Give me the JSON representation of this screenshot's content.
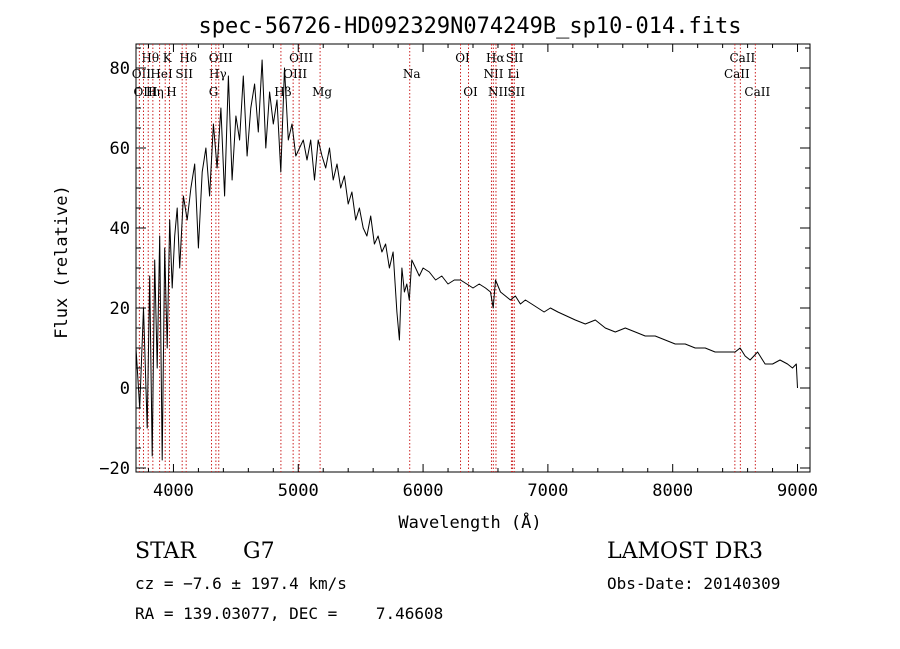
{
  "chart_data": {
    "type": "line",
    "title": "spec-56726-HD092329N074249B_sp10-014.fits",
    "xlabel": "Wavelength (Å)",
    "ylabel": "Flux (relative)",
    "xlim": [
      3700,
      9100
    ],
    "ylim": [
      -21,
      86
    ],
    "xticks": [
      4000,
      5000,
      6000,
      7000,
      8000,
      9000
    ],
    "xtick_labels": [
      "4000",
      "5000",
      "6000",
      "7000",
      "8000",
      "9000"
    ],
    "yticks": [
      -20,
      0,
      20,
      40,
      60,
      80
    ],
    "ytick_labels": [
      "−20",
      "0",
      "20",
      "40",
      "60",
      "80"
    ],
    "grid": false,
    "series": [
      {
        "name": "flux",
        "color": "#000000",
        "x": [
          3700,
          3730,
          3760,
          3790,
          3810,
          3830,
          3850,
          3870,
          3890,
          3910,
          3930,
          3950,
          3970,
          3990,
          4010,
          4030,
          4050,
          4080,
          4110,
          4140,
          4170,
          4200,
          4230,
          4260,
          4290,
          4320,
          4350,
          4380,
          4410,
          4440,
          4470,
          4500,
          4530,
          4560,
          4590,
          4620,
          4650,
          4680,
          4710,
          4740,
          4770,
          4800,
          4830,
          4860,
          4890,
          4920,
          4950,
          4980,
          5010,
          5040,
          5070,
          5100,
          5130,
          5160,
          5190,
          5220,
          5250,
          5280,
          5310,
          5340,
          5370,
          5400,
          5430,
          5460,
          5490,
          5520,
          5550,
          5580,
          5610,
          5640,
          5670,
          5700,
          5730,
          5760,
          5790,
          5810,
          5830,
          5850,
          5870,
          5890,
          5910,
          5940,
          5970,
          6000,
          6050,
          6100,
          6150,
          6200,
          6250,
          6300,
          6350,
          6400,
          6450,
          6500,
          6540,
          6562,
          6580,
          6620,
          6660,
          6700,
          6740,
          6780,
          6820,
          6870,
          6920,
          6970,
          7020,
          7080,
          7150,
          7220,
          7300,
          7380,
          7460,
          7540,
          7620,
          7700,
          7780,
          7860,
          7940,
          8020,
          8100,
          8180,
          8260,
          8340,
          8420,
          8500,
          8540,
          8580,
          8620,
          8680,
          8740,
          8800,
          8860,
          8920,
          8960,
          8990,
          9000
        ],
        "y": [
          10,
          -5,
          20,
          -10,
          28,
          -17,
          32,
          5,
          38,
          -18,
          35,
          10,
          42,
          25,
          38,
          45,
          30,
          48,
          42,
          50,
          56,
          35,
          54,
          60,
          48,
          66,
          55,
          70,
          48,
          78,
          52,
          68,
          62,
          78,
          58,
          70,
          76,
          64,
          82,
          60,
          74,
          66,
          72,
          54,
          80,
          62,
          66,
          58,
          60,
          62,
          57,
          62,
          52,
          62,
          58,
          55,
          60,
          52,
          56,
          50,
          53,
          46,
          49,
          42,
          45,
          40,
          38,
          43,
          36,
          38,
          34,
          36,
          30,
          34,
          19,
          12,
          30,
          24,
          26,
          22,
          32,
          30,
          28,
          30,
          29,
          27,
          28,
          26,
          27,
          27,
          26,
          25,
          26,
          25,
          24,
          20,
          27,
          24,
          23,
          22,
          23,
          21,
          22,
          21,
          20,
          19,
          20,
          19,
          18,
          17,
          16,
          17,
          15,
          14,
          15,
          14,
          13,
          13,
          12,
          11,
          11,
          10,
          10,
          9,
          9,
          9,
          10,
          8,
          7,
          9,
          6,
          6,
          7,
          6,
          5,
          6,
          0
        ]
      }
    ],
    "line_markers": [
      {
        "name": "Hθ",
        "wavelength": 3798,
        "row": 1
      },
      {
        "name": "OII",
        "wavelength": 3727,
        "row": 2
      },
      {
        "name": "OIII",
        "wavelength": 3760,
        "row": 3
      },
      {
        "name": "Hη",
        "wavelength": 3835,
        "row": 3
      },
      {
        "name": "K",
        "wavelength": 3934,
        "row": 1
      },
      {
        "name": "HeI",
        "wavelength": 3889,
        "row": 2
      },
      {
        "name": "H",
        "wavelength": 3968,
        "row": 3
      },
      {
        "name": "Hδ",
        "wavelength": 4102,
        "row": 1
      },
      {
        "name": "SII",
        "wavelength": 4070,
        "row": 2
      },
      {
        "name": "OIII",
        "wavelength": 4363,
        "row": 1
      },
      {
        "name": "Hγ",
        "wavelength": 4340,
        "row": 2
      },
      {
        "name": "G",
        "wavelength": 4305,
        "row": 3
      },
      {
        "name": "OIII",
        "wavelength": 5007,
        "row": 1
      },
      {
        "name": "OIII",
        "wavelength": 4959,
        "row": 2
      },
      {
        "name": "Hβ",
        "wavelength": 4861,
        "row": 3
      },
      {
        "name": "Mg",
        "wavelength": 5175,
        "row": 3
      },
      {
        "name": "Na",
        "wavelength": 5893,
        "row": 2
      },
      {
        "name": "OI",
        "wavelength": 6300,
        "row": 1
      },
      {
        "name": "OI",
        "wavelength": 6364,
        "row": 3
      },
      {
        "name": "Hα",
        "wavelength": 6563,
        "row": 1
      },
      {
        "name": "NII",
        "wavelength": 6548,
        "row": 2
      },
      {
        "name": "NII",
        "wavelength": 6584,
        "row": 3
      },
      {
        "name": "SII",
        "wavelength": 6717,
        "row": 1
      },
      {
        "name": "Li",
        "wavelength": 6708,
        "row": 2
      },
      {
        "name": "SII",
        "wavelength": 6731,
        "row": 3
      },
      {
        "name": "CaII",
        "wavelength": 8542,
        "row": 1
      },
      {
        "name": "CaII",
        "wavelength": 8498,
        "row": 2
      },
      {
        "name": "CaII",
        "wavelength": 8662,
        "row": 3
      }
    ],
    "marker_color": "#cc2222"
  },
  "info": {
    "class_label": "STAR",
    "subclass": "G7",
    "survey": "LAMOST DR3",
    "redshift": "cz = −7.6 ± 197.4 km/s",
    "obs_date": "Obs-Date: 20140309",
    "coords": "RA = 139.03077, DEC =    7.46608"
  }
}
